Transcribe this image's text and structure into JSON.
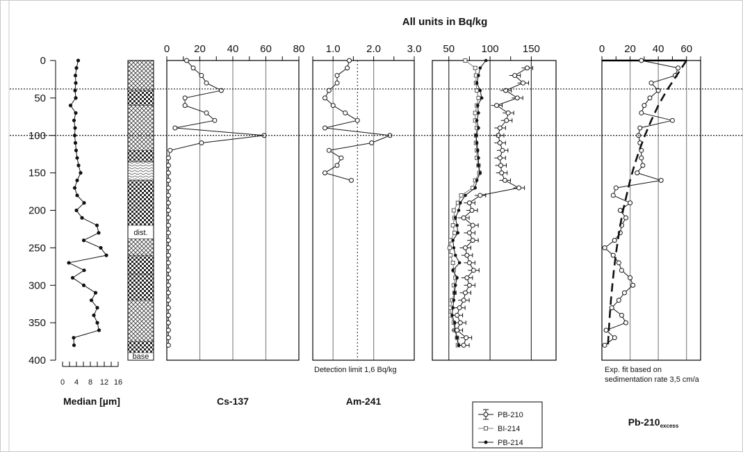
{
  "figure_title": "All units in Bq/kg",
  "strat_labels": {
    "dist": "dist.",
    "base": "base"
  },
  "legend": [
    {
      "name": "PB-210",
      "marker": "errorbar-circle"
    },
    {
      "name": "BI-214",
      "marker": "open-square"
    },
    {
      "name": "PB-214",
      "marker": "filled-dot"
    }
  ],
  "chart_data": [
    {
      "type": "line",
      "title": "",
      "xlabel": "Median [µm]",
      "ylabel": "",
      "ylim": [
        0,
        400
      ],
      "y_reversed": true,
      "y_ticks": [
        0,
        50,
        100,
        150,
        200,
        250,
        300,
        350,
        400
      ],
      "xlim": [
        0,
        16
      ],
      "x_ticks": [
        0,
        4,
        8,
        12,
        16
      ],
      "series": [
        {
          "name": "",
          "depth": [
            0,
            10,
            20,
            30,
            40,
            50,
            60,
            70,
            80,
            90,
            100,
            110,
            120,
            130,
            140,
            150,
            160,
            170,
            180,
            190,
            200,
            210,
            220,
            230,
            240,
            250,
            260,
            270,
            280,
            290,
            300,
            310,
            320,
            330,
            340,
            350,
            360,
            370,
            380
          ],
          "values": [
            4.5,
            4,
            3.7,
            3.8,
            3.6,
            3.8,
            2.3,
            3.8,
            3.3,
            3.6,
            3.5,
            3.7,
            3.9,
            4.2,
            4.6,
            5.2,
            4.2,
            3.5,
            4.2,
            6.2,
            4,
            5.6,
            9.9,
            10.4,
            6.1,
            11,
            12.6,
            1.8,
            6.2,
            2.9,
            6.1,
            9.5,
            8.3,
            10,
            9,
            10,
            10.5,
            3.2,
            3.3
          ]
        }
      ]
    },
    {
      "type": "table",
      "title": "",
      "xlabel": "",
      "labels": [
        "dist.",
        "base"
      ]
    },
    {
      "type": "line",
      "title": "",
      "xlabel": "Cs-137",
      "xlim": [
        0,
        80
      ],
      "x_ticks": [
        0,
        20,
        40,
        60,
        80
      ],
      "ylim": [
        0,
        400
      ],
      "y_reversed": true,
      "series": [
        {
          "name": "",
          "depth": [
            0,
            10,
            20,
            30,
            40,
            50,
            60,
            70,
            80,
            90,
            100,
            110,
            120,
            130,
            140,
            150,
            160,
            170,
            180,
            190,
            200,
            210,
            220,
            230,
            240,
            250,
            260,
            270,
            280,
            290,
            300,
            310,
            320,
            330,
            340,
            350,
            360,
            370,
            380
          ],
          "values": [
            12,
            16,
            21,
            24,
            33,
            11,
            11,
            24,
            29,
            5,
            59,
            21,
            2,
            1,
            1,
            1,
            1,
            1,
            1,
            1,
            1,
            1,
            1,
            1,
            1,
            1,
            1,
            1,
            1,
            1,
            1,
            1,
            1,
            1,
            1,
            1,
            1,
            1,
            1
          ]
        }
      ]
    },
    {
      "type": "line",
      "title": "",
      "xlabel": "Am-241",
      "xlim": [
        0.5,
        3.0
      ],
      "x_ticks": [
        1.0,
        2.0,
        3.0
      ],
      "detection_limit": 1.6,
      "annotation": "Detection limit 1,6 Bq/kg",
      "ylim": [
        0,
        400
      ],
      "y_reversed": true,
      "series": [
        {
          "name": "",
          "depth": [
            0,
            10,
            20,
            30,
            40,
            50,
            60,
            70,
            80,
            90,
            100,
            110,
            120,
            130,
            140,
            150,
            160
          ],
          "values": [
            1.4,
            1.35,
            1.1,
            1.1,
            0.9,
            0.8,
            1.0,
            1.3,
            1.6,
            0.8,
            2.4,
            1.95,
            0.9,
            1.2,
            1.1,
            0.8,
            1.45
          ]
        }
      ]
    },
    {
      "type": "line",
      "title": "",
      "xlabel": "",
      "xlim": [
        30,
        180
      ],
      "x_ticks": [
        50,
        100,
        150
      ],
      "ylim": [
        0,
        400
      ],
      "y_reversed": true,
      "series": [
        {
          "name": "PB-210",
          "depth": [
            10,
            20,
            30,
            40,
            50,
            60,
            70,
            80,
            90,
            100,
            110,
            120,
            130,
            140,
            150,
            160,
            170,
            180,
            190,
            200,
            210,
            220,
            230,
            240,
            250,
            260,
            270,
            280,
            290,
            300,
            310,
            320,
            330,
            340,
            350,
            360,
            370,
            380
          ],
          "values": [
            145,
            130,
            140,
            119,
            133,
            108,
            122,
            120,
            112,
            110,
            112,
            115,
            112,
            113,
            114,
            118,
            135,
            88,
            75,
            78,
            68,
            79,
            75,
            79,
            70,
            72,
            75,
            80,
            72,
            75,
            70,
            68,
            63,
            60,
            64,
            60,
            71,
            68
          ]
        },
        {
          "name": "BI-214",
          "depth": [
            0,
            10,
            20,
            30,
            40,
            50,
            60,
            70,
            80,
            90,
            100,
            110,
            120,
            130,
            140,
            150,
            160,
            170,
            180,
            190,
            200,
            210,
            220,
            230,
            240,
            250,
            260,
            270,
            280,
            290,
            300,
            310,
            320,
            330,
            340,
            350,
            360,
            370,
            380
          ],
          "values": [
            70,
            82,
            83,
            83,
            84,
            86,
            84,
            82,
            82,
            84,
            83,
            83,
            84,
            84,
            86,
            87,
            82,
            79,
            65,
            61,
            56,
            57,
            55,
            57,
            52,
            51,
            52,
            55,
            56,
            58,
            56,
            57,
            54,
            52,
            52,
            56,
            57,
            60,
            61
          ]
        },
        {
          "name": "PB-214",
          "depth": [
            0,
            10,
            20,
            30,
            40,
            50,
            60,
            70,
            80,
            90,
            100,
            110,
            120,
            130,
            140,
            150,
            160,
            170,
            180,
            190,
            200,
            210,
            220,
            230,
            240,
            250,
            260,
            270,
            280,
            290,
            300,
            310,
            320,
            330,
            340,
            350,
            360,
            370,
            380
          ],
          "values": [
            95,
            88,
            86,
            84,
            88,
            90,
            85,
            86,
            84,
            86,
            83,
            84,
            85,
            86,
            86,
            88,
            84,
            82,
            70,
            64,
            62,
            58,
            60,
            61,
            55,
            56,
            58,
            63,
            55,
            60,
            58,
            57,
            56,
            55,
            54,
            57,
            58,
            60,
            62
          ]
        }
      ]
    },
    {
      "type": "line",
      "title": "",
      "xlabel": "Pb-210",
      "xlabel_subscript": "excess",
      "xlim": [
        0,
        70
      ],
      "x_ticks": [
        0,
        20,
        40,
        60
      ],
      "annotation": [
        "Exp. fit  based on",
        "sedimentation rate 3,5 cm/a"
      ],
      "ylim": [
        0,
        400
      ],
      "y_reversed": true,
      "series": [
        {
          "name": "",
          "depth": [
            0,
            10,
            20,
            30,
            40,
            50,
            60,
            70,
            80,
            90,
            100,
            110,
            120,
            130,
            140,
            150,
            160,
            170,
            180,
            190,
            200,
            210,
            220,
            230,
            240,
            250,
            260,
            270,
            280,
            290,
            300,
            310,
            320,
            330,
            340,
            350,
            360,
            370,
            380
          ],
          "values": [
            28,
            54,
            52,
            35,
            40,
            34,
            30,
            28,
            50,
            27,
            26,
            27,
            28,
            28,
            29,
            25,
            42,
            10,
            8,
            20,
            13,
            17,
            14,
            13,
            9,
            2,
            8,
            12,
            14,
            20,
            22,
            16,
            12,
            7,
            14,
            17,
            3,
            9,
            2
          ]
        },
        {
          "name": "fit",
          "style": "dashed",
          "depth": [
            0,
            20,
            40,
            60,
            80,
            100,
            120,
            140,
            160,
            180,
            200,
            220,
            240,
            260,
            280,
            300,
            320,
            340,
            360,
            380
          ],
          "values": [
            60,
            53,
            46,
            40,
            35,
            30.5,
            26.5,
            23,
            20,
            17.5,
            15,
            13,
            11.3,
            9.8,
            8.5,
            7.4,
            6.4,
            5.6,
            4.9,
            4.3
          ]
        }
      ]
    }
  ]
}
